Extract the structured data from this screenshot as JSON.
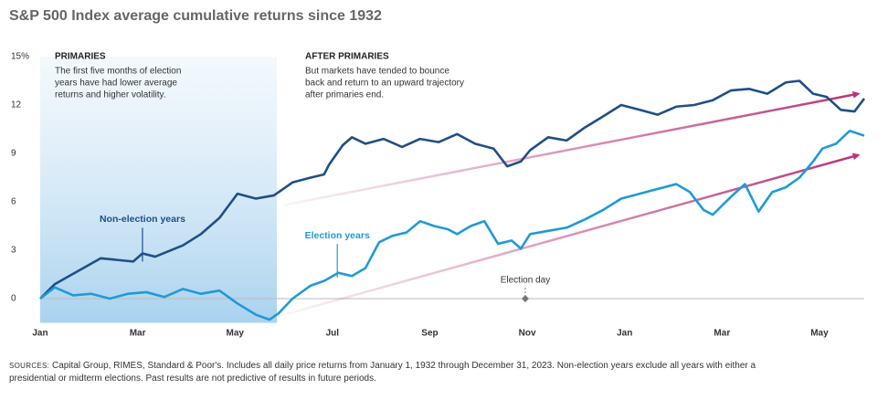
{
  "chart_data": {
    "type": "line",
    "title": "S&P 500 Index average cumulative returns since 1932",
    "xlim": [
      0,
      16.92
    ],
    "xticks": [
      {
        "value": 0,
        "label": "Jan"
      },
      {
        "value": 2,
        "label": "Mar"
      },
      {
        "value": 4,
        "label": "May"
      },
      {
        "value": 6,
        "label": "Jul"
      },
      {
        "value": 8,
        "label": "Sep"
      },
      {
        "value": 10,
        "label": "Nov"
      },
      {
        "value": 12,
        "label": "Jan"
      },
      {
        "value": 14,
        "label": "Mar"
      },
      {
        "value": 16,
        "label": "May"
      }
    ],
    "ylim": [
      -1.5,
      15
    ],
    "yticks": [
      0,
      3,
      6,
      9,
      12,
      {
        "value": 15,
        "label": "15%"
      }
    ],
    "highlight_x": [
      0,
      4.86
    ],
    "series": [
      {
        "name": "Non-election years",
        "color": "#1f4f85",
        "label_at": [
          2.1,
          4.9
        ],
        "x": [
          0,
          0.3,
          1.24,
          1.91,
          2.1,
          2.36,
          2.93,
          3.3,
          3.68,
          4.05,
          4.43,
          4.8,
          5.18,
          5.55,
          5.83,
          5.93,
          6.21,
          6.4,
          6.68,
          7.05,
          7.43,
          7.8,
          8.18,
          8.56,
          8.93,
          9.31,
          9.59,
          9.87,
          10.06,
          10.43,
          10.81,
          11.18,
          11.56,
          11.93,
          12.31,
          12.68,
          13.06,
          13.43,
          13.81,
          14.18,
          14.56,
          14.93,
          15.31,
          15.59,
          15.87,
          16.15,
          16.44,
          16.72,
          16.92
        ],
        "values": [
          0,
          0.9,
          2.5,
          2.3,
          2.8,
          2.6,
          3.3,
          4.0,
          5.0,
          6.5,
          6.2,
          6.4,
          7.2,
          7.5,
          7.7,
          8.3,
          9.5,
          10.0,
          9.6,
          9.9,
          9.4,
          9.9,
          9.7,
          10.2,
          9.6,
          9.3,
          8.2,
          8.5,
          9.2,
          10.0,
          9.8,
          10.6,
          11.3,
          12.0,
          11.7,
          11.4,
          11.9,
          12.0,
          12.3,
          12.9,
          13.0,
          12.7,
          13.4,
          13.5,
          12.7,
          12.5,
          11.7,
          11.6,
          12.4
        ]
      },
      {
        "name": "Election years",
        "color": "#1f9ad6",
        "label_at": [
          6.1,
          3.9
        ],
        "x": [
          0,
          0.3,
          0.68,
          1.05,
          1.43,
          1.8,
          2.18,
          2.55,
          2.93,
          3.3,
          3.68,
          4.05,
          4.43,
          4.71,
          4.9,
          5.18,
          5.55,
          5.83,
          6.12,
          6.4,
          6.68,
          6.96,
          7.24,
          7.52,
          7.8,
          8.09,
          8.37,
          8.56,
          8.84,
          9.12,
          9.4,
          9.68,
          9.87,
          10.06,
          10.43,
          10.81,
          11.18,
          11.56,
          11.93,
          12.31,
          12.68,
          13.06,
          13.34,
          13.62,
          13.81,
          14.18,
          14.47,
          14.75,
          15.03,
          15.31,
          15.59,
          15.87,
          16.06,
          16.34,
          16.62,
          16.92
        ],
        "values": [
          0,
          0.7,
          0.2,
          0.3,
          0.0,
          0.3,
          0.4,
          0.1,
          0.6,
          0.3,
          0.5,
          -0.3,
          -1.0,
          -1.3,
          -0.9,
          0.0,
          0.8,
          1.1,
          1.6,
          1.4,
          1.9,
          3.5,
          3.9,
          4.1,
          4.8,
          4.5,
          4.3,
          4.0,
          4.5,
          4.8,
          3.4,
          3.6,
          3.1,
          4.0,
          4.2,
          4.4,
          4.9,
          5.5,
          6.2,
          6.5,
          6.8,
          7.1,
          6.6,
          5.5,
          5.2,
          6.3,
          7.1,
          5.4,
          6.6,
          6.9,
          7.5,
          8.5,
          9.3,
          9.6,
          10.4,
          10.1
        ]
      }
    ],
    "trend_arrows": [
      {
        "x": [
          5.0,
          16.8
        ],
        "y": [
          5.8,
          12.7
        ]
      },
      {
        "x": [
          5.0,
          16.8
        ],
        "y": [
          -1.0,
          8.9
        ]
      }
    ],
    "event": {
      "label": "Election day",
      "x": 9.96,
      "y": 0
    },
    "notes": [
      {
        "heading": "PRIMARIES",
        "lines": [
          "The first five months of election",
          "years have had lower average",
          "returns and higher volatility."
        ]
      },
      {
        "heading": "AFTER PRIMARIES",
        "lines": [
          "But markets have tended to bounce",
          "back and return to an upward trajectory",
          "after primaries end."
        ]
      }
    ],
    "source": {
      "label": "SOURCES:",
      "lines": [
        "Capital Group, RIMES, Standard & Poor's. Includes all daily price returns from January 1, 1932 through December 31, 2023. Non-election years exclude all years with either a",
        "presidential or midterm elections. Past results are not predictive of results in future periods."
      ]
    }
  }
}
